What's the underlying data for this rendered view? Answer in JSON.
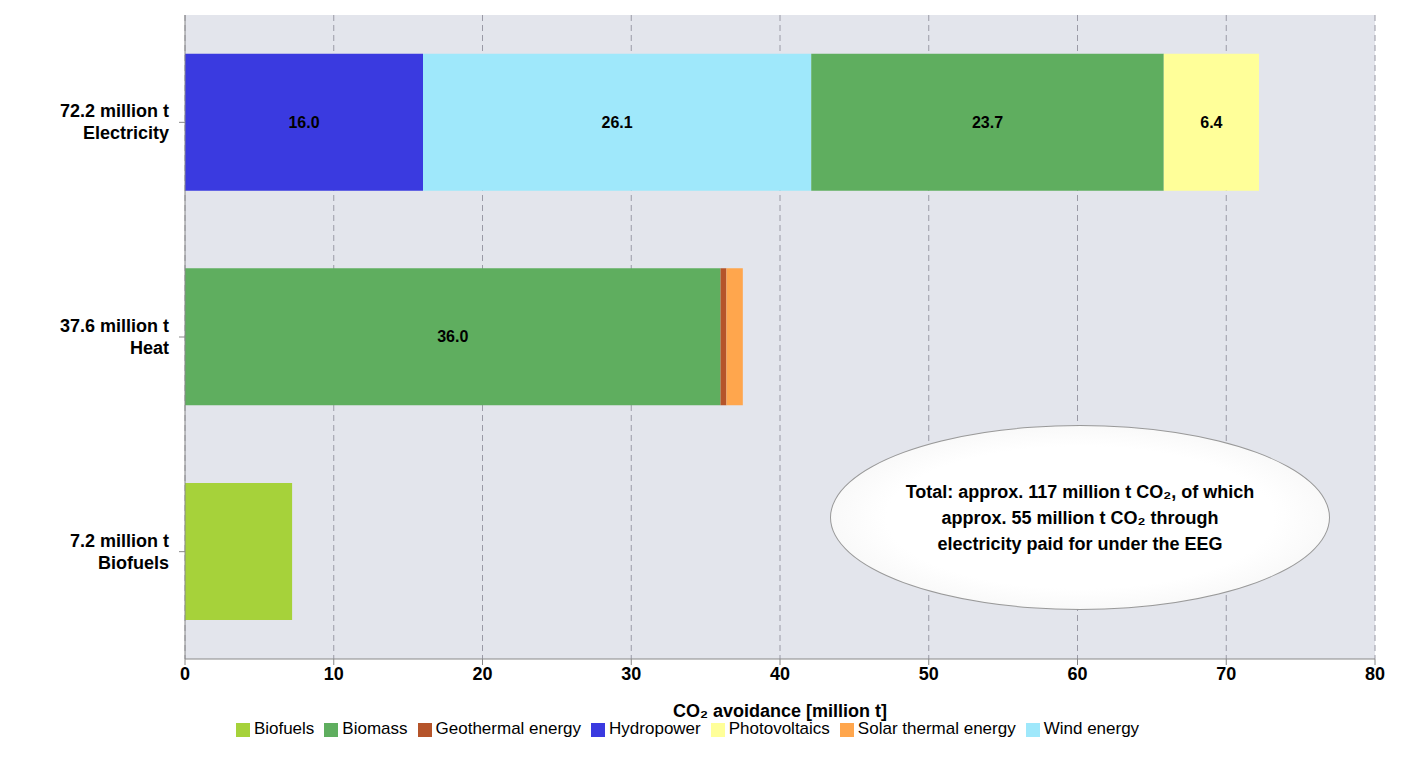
{
  "chart_data": {
    "type": "bar",
    "orientation": "horizontal",
    "stacked": true,
    "data_labels": true,
    "grid": true,
    "legend": "bottom",
    "x_label": "CO₂ avoidance [million t]",
    "annotation": "Total: approx. 117 million t CO₂, of which approx. 55 million t CO₂ through electricity paid for under the EEG",
    "categories": [
      "72.2 million t\nElectricity",
      "37.6 million t\nHeat",
      "7.2 million t\nBiofuels"
    ],
    "xlim": [
      0,
      80
    ],
    "xticks": [
      0,
      10,
      20,
      30,
      40,
      50,
      60,
      70,
      80
    ],
    "series": [
      {
        "name": "Hydropower",
        "color": "#3a3ae0",
        "values": [
          16.0,
          null,
          null
        ],
        "value_labels": [
          "16.0",
          null,
          null
        ]
      },
      {
        "name": "Wind energy",
        "color": "#9fe8fb",
        "values": [
          26.1,
          null,
          null
        ]
      },
      {
        "name": "Biomass",
        "color": "#5fae5f",
        "values": [
          23.7,
          36.0,
          null
        ],
        "value_labels": [
          "23.7",
          "36.0",
          null
        ]
      },
      {
        "name": "Photovoltaics",
        "color": "#ffff99",
        "values": [
          6.4,
          null,
          null
        ]
      },
      {
        "name": "Geothermal energy",
        "color": "#b5542a",
        "values": [
          null,
          0.4,
          null
        ]
      },
      {
        "name": "Solar thermal energy",
        "color": "#ffa64d",
        "values": [
          null,
          1.1,
          null
        ]
      },
      {
        "name": "Biofuels",
        "color": "#a6d23a",
        "values": [
          null,
          null,
          7.2
        ]
      }
    ]
  }
}
